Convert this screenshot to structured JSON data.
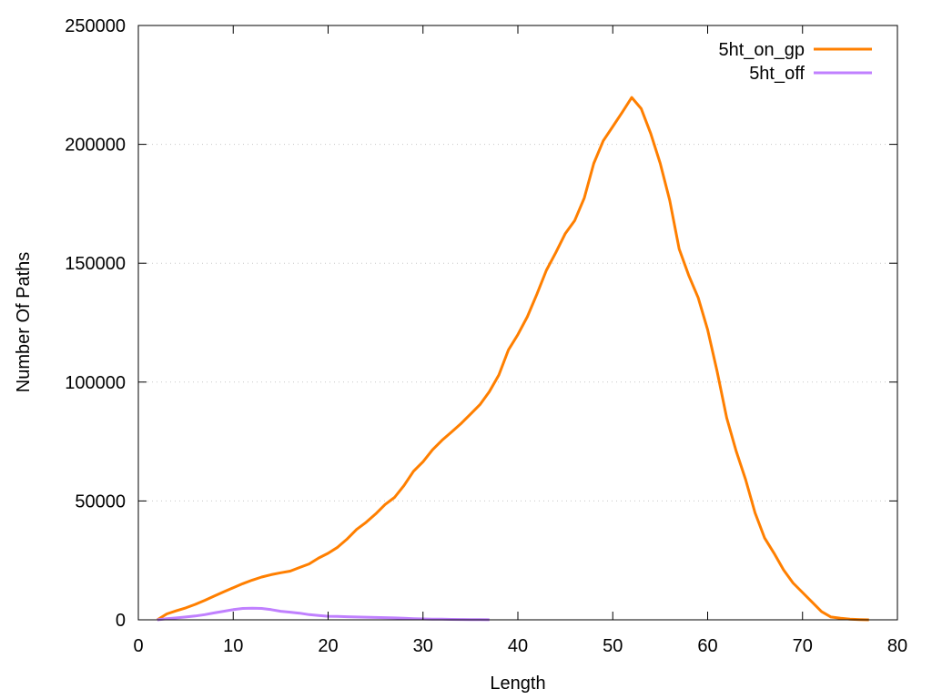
{
  "chart_data": {
    "type": "line",
    "title": "",
    "xlabel": "Length",
    "ylabel": "Number Of Paths",
    "xlim": [
      0,
      80
    ],
    "ylim": [
      0,
      250000
    ],
    "xticks": [
      0,
      10,
      20,
      30,
      40,
      50,
      60,
      70,
      80
    ],
    "yticks": [
      0,
      50000,
      100000,
      150000,
      200000,
      250000
    ],
    "grid": "horizontal dotted",
    "legend_position": "top-right",
    "series": [
      {
        "name": "5ht_on_gp",
        "color": "#ff7f00",
        "x": [
          2,
          3,
          4,
          5,
          6,
          7,
          8,
          9,
          10,
          11,
          12,
          13,
          14,
          15,
          16,
          17,
          18,
          19,
          20,
          21,
          22,
          23,
          24,
          25,
          26,
          27,
          28,
          29,
          30,
          31,
          32,
          33,
          34,
          35,
          36,
          37,
          38,
          39,
          40,
          41,
          42,
          43,
          44,
          45,
          46,
          47,
          48,
          49,
          50,
          51,
          52,
          53,
          54,
          55,
          56,
          57,
          58,
          59,
          60,
          61,
          62,
          63,
          64,
          65,
          66,
          67,
          68,
          69,
          70,
          71,
          72,
          73,
          74,
          75,
          76,
          77
        ],
        "y": [
          0,
          2500,
          3800,
          5000,
          6500,
          8200,
          10000,
          11800,
          13500,
          15200,
          16700,
          18000,
          19000,
          19800,
          20500,
          22000,
          23500,
          26000,
          28000,
          30500,
          34000,
          38000,
          41000,
          44500,
          48500,
          51500,
          56500,
          62500,
          66500,
          71500,
          75500,
          79000,
          82500,
          86500,
          90500,
          96000,
          103000,
          113500,
          120000,
          127500,
          137000,
          147000,
          154500,
          162500,
          168000,
          177500,
          192000,
          201500,
          207500,
          213500,
          219700,
          215000,
          204500,
          192000,
          176500,
          156000,
          145000,
          135500,
          122000,
          104500,
          85000,
          71000,
          59000,
          45000,
          34500,
          28000,
          21000,
          15500,
          11500,
          7500,
          3500,
          1200,
          700,
          300,
          100,
          0
        ]
      },
      {
        "name": "5ht_off",
        "color": "#c080ff",
        "x": [
          2,
          3,
          4,
          5,
          6,
          7,
          8,
          9,
          10,
          11,
          12,
          13,
          14,
          15,
          16,
          17,
          18,
          19,
          20,
          21,
          22,
          23,
          24,
          25,
          26,
          27,
          28,
          29,
          30,
          31,
          32,
          33,
          34,
          35,
          36,
          37
        ],
        "y": [
          0,
          500,
          800,
          1200,
          1600,
          2200,
          2900,
          3600,
          4300,
          4800,
          4900,
          4800,
          4300,
          3600,
          3200,
          2800,
          2200,
          1800,
          1500,
          1400,
          1300,
          1200,
          1100,
          1000,
          900,
          800,
          700,
          500,
          400,
          300,
          250,
          200,
          150,
          100,
          80,
          50
        ]
      }
    ]
  }
}
